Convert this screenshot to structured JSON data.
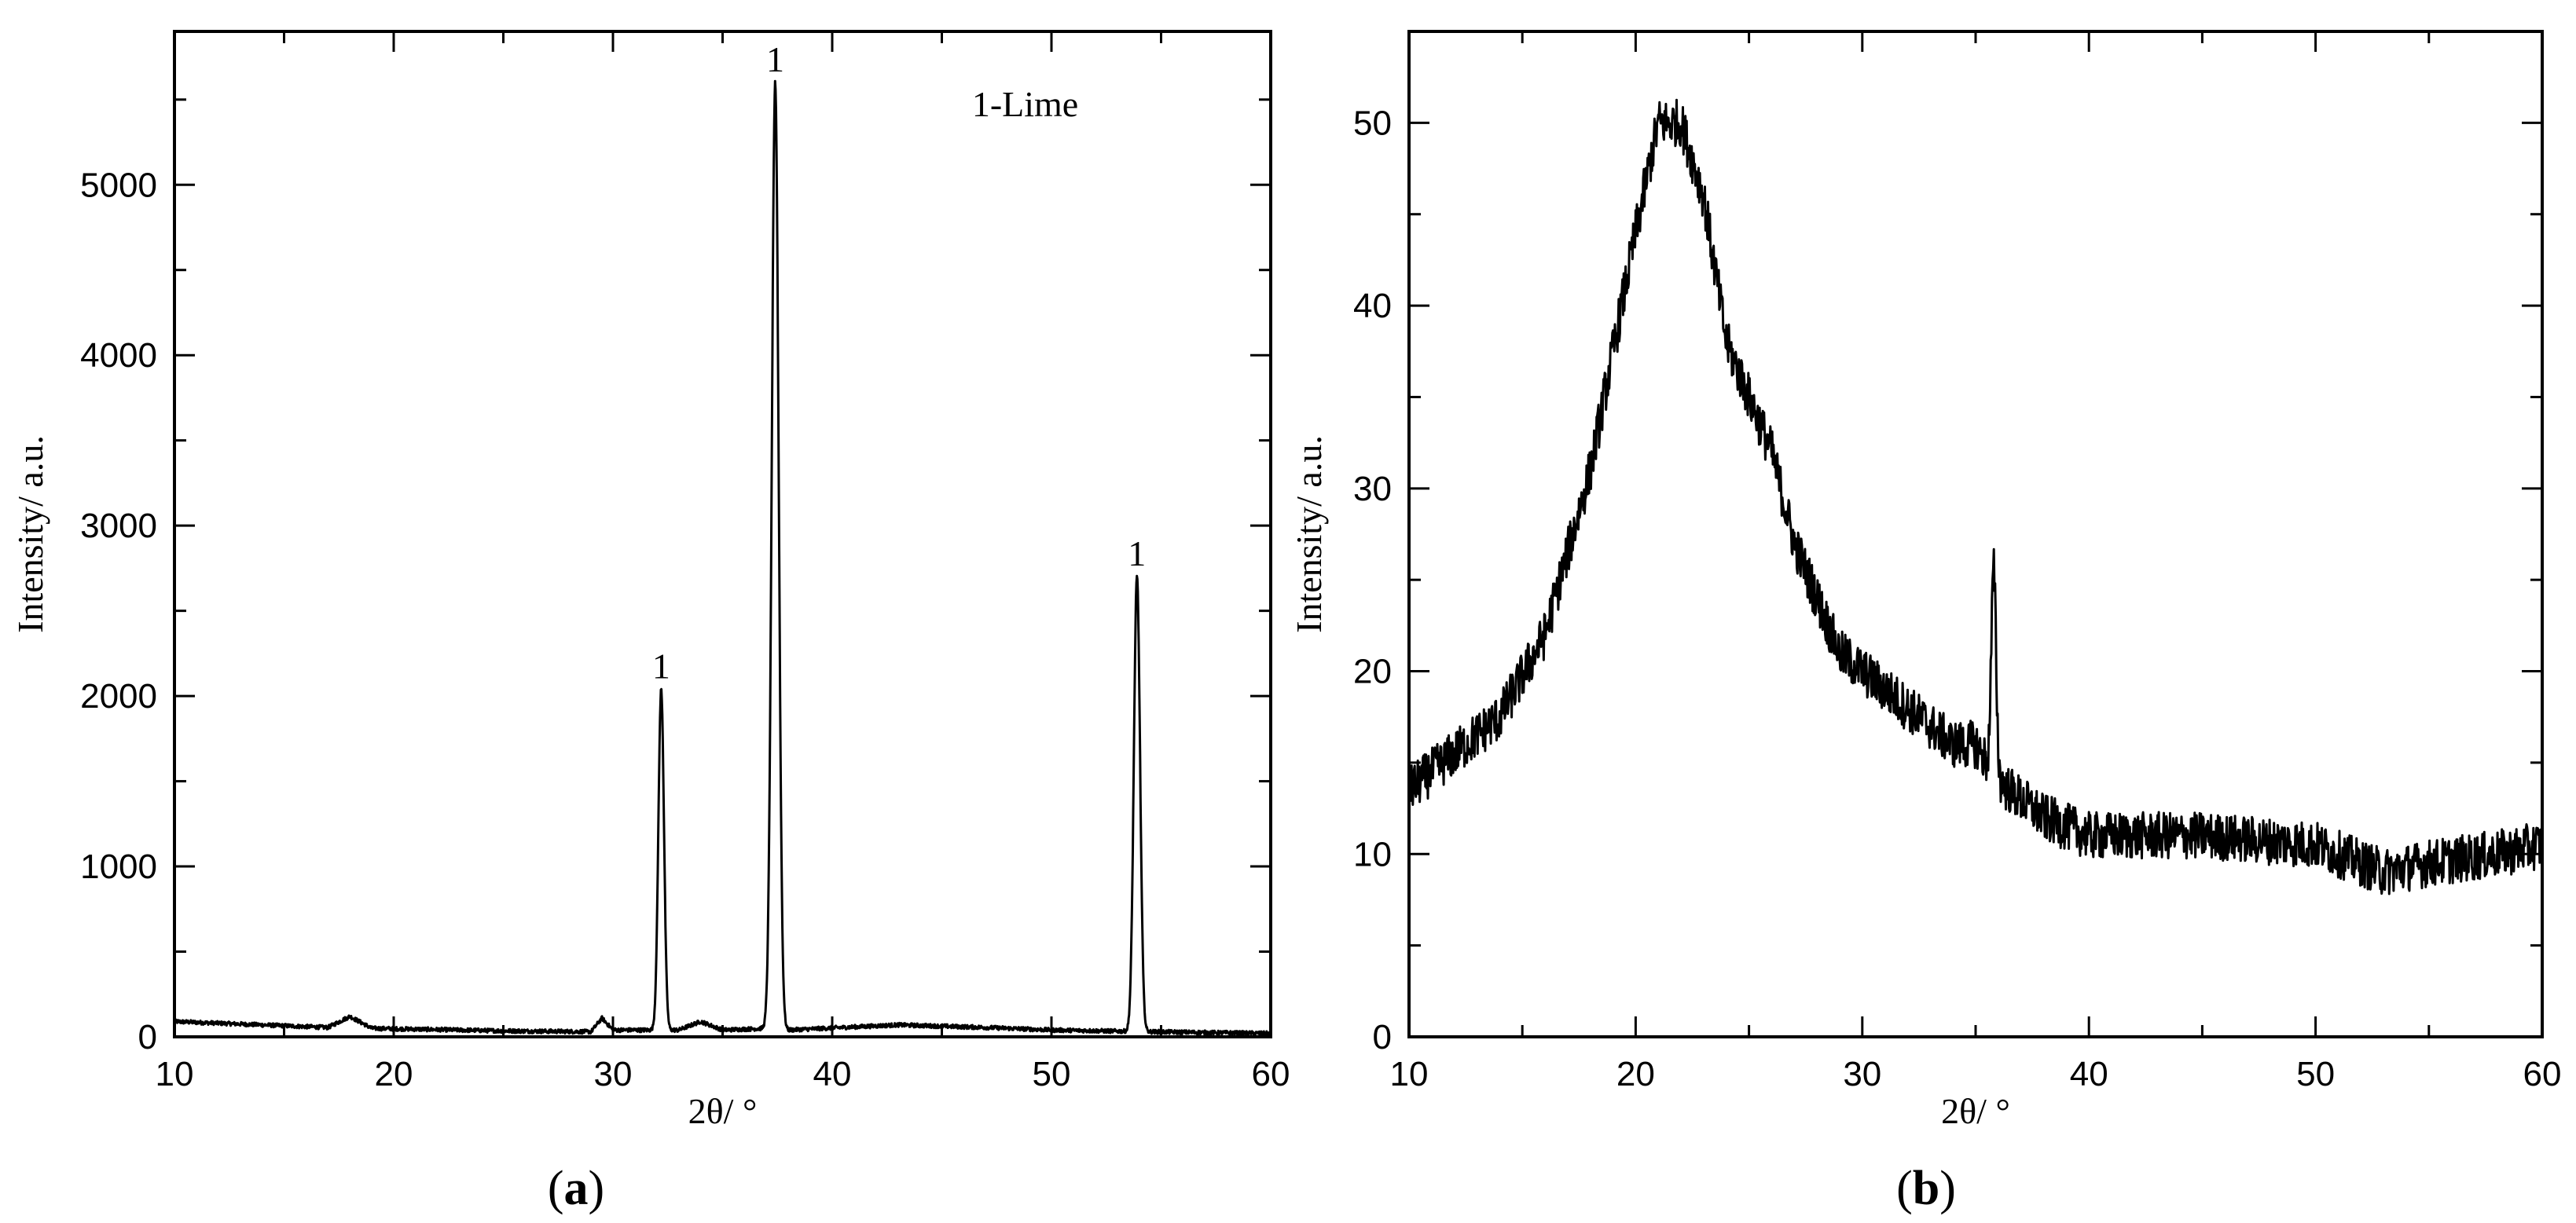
{
  "chart_data": [
    {
      "type": "line",
      "panel_label": "a",
      "title": "",
      "xlabel": "2θ/ °",
      "ylabel": "Intensity/ a.u.",
      "xlim": [
        10,
        60
      ],
      "ylim": [
        0,
        5900
      ],
      "xticks": [
        10,
        20,
        30,
        40,
        50,
        60
      ],
      "yticks": [
        0,
        1000,
        2000,
        3000,
        4000,
        5000
      ],
      "legend_text": "1-Lime",
      "baseline": [
        [
          10,
          90
        ],
        [
          14,
          70
        ],
        [
          17,
          55
        ],
        [
          18,
          120
        ],
        [
          19,
          50
        ],
        [
          25,
          35
        ],
        [
          29,
          30
        ],
        [
          29.5,
          110
        ],
        [
          30,
          40
        ],
        [
          33,
          40
        ],
        [
          34,
          90
        ],
        [
          35,
          40
        ],
        [
          37,
          50
        ],
        [
          38,
          40
        ],
        [
          43,
          70
        ],
        [
          47,
          55
        ],
        [
          50,
          40
        ],
        [
          54.5,
          30
        ],
        [
          60,
          20
        ]
      ],
      "peaks": [
        {
          "x": 32.2,
          "y": 2040,
          "width": 0.18
        },
        {
          "x": 37.4,
          "y": 5600,
          "width": 0.22
        },
        {
          "x": 53.9,
          "y": 2700,
          "width": 0.2
        }
      ],
      "peak_labels": [
        {
          "x": 32.2,
          "y": 2040,
          "text": "1"
        },
        {
          "x": 37.4,
          "y": 5600,
          "text": "1"
        },
        {
          "x": 53.9,
          "y": 2700,
          "text": "1"
        }
      ]
    },
    {
      "type": "line",
      "panel_label": "b",
      "title": "",
      "xlabel": "2θ/ °",
      "ylabel": "Intensity/ a.u.",
      "xlim": [
        10,
        60
      ],
      "ylim": [
        0,
        55
      ],
      "xticks": [
        10,
        20,
        30,
        40,
        50,
        60
      ],
      "yticks": [
        0,
        10,
        20,
        30,
        40,
        50
      ],
      "envelope": [
        [
          10,
          13.5
        ],
        [
          12,
          15.5
        ],
        [
          14,
          17.5
        ],
        [
          16,
          22
        ],
        [
          18,
          31
        ],
        [
          20,
          44
        ],
        [
          21,
          50
        ],
        [
          22,
          50
        ],
        [
          23,
          46
        ],
        [
          24,
          38
        ],
        [
          25,
          35
        ],
        [
          26,
          32
        ],
        [
          27,
          27
        ],
        [
          28,
          24
        ],
        [
          29,
          21
        ],
        [
          30,
          20
        ],
        [
          31,
          19
        ],
        [
          32,
          18
        ],
        [
          33,
          17
        ],
        [
          34,
          16
        ],
        [
          35,
          16
        ],
        [
          36,
          14
        ],
        [
          37,
          13
        ],
        [
          38,
          12
        ],
        [
          40,
          11
        ],
        [
          45,
          11
        ],
        [
          50,
          10.5
        ],
        [
          53,
          9
        ],
        [
          55,
          9.5
        ],
        [
          58,
          10
        ],
        [
          60,
          10.5
        ]
      ],
      "peaks": [
        {
          "x": 35.8,
          "y": 25.5,
          "width": 0.15
        }
      ],
      "noise_amplitude": 1.3
    }
  ],
  "panel_labels": [
    "(a)",
    "(b)"
  ],
  "peak_label_text": "1"
}
